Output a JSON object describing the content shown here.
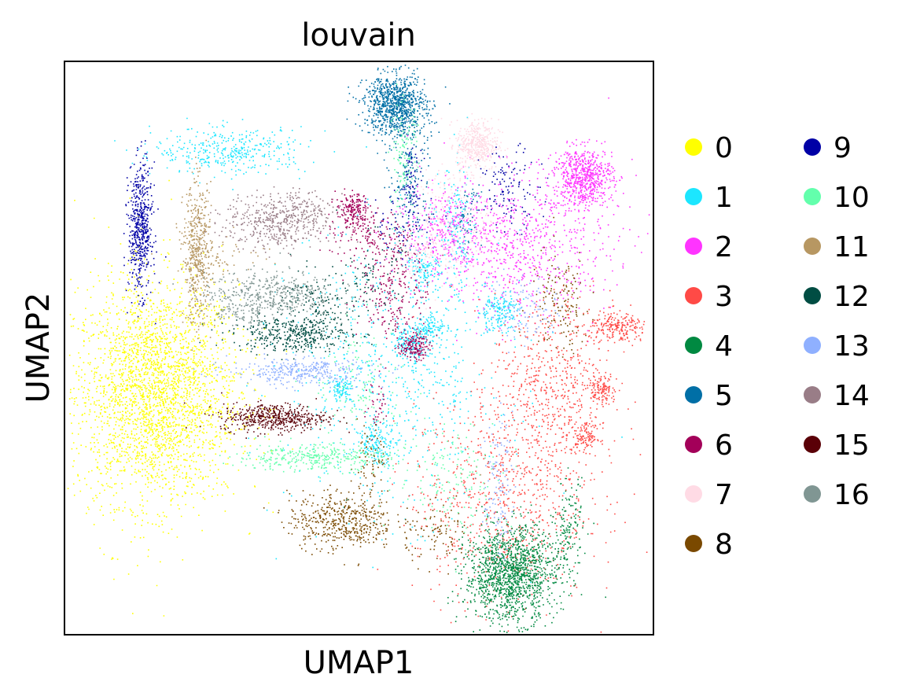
{
  "chart_data": {
    "type": "scatter",
    "title": "louvain",
    "xlabel": "UMAP1",
    "ylabel": "UMAP2",
    "grid": false,
    "ticks": false,
    "legend_position": "right, outside plot area, two columns",
    "clusters": [
      {
        "name": "0",
        "color": "#ffff00",
        "regions": [
          {
            "cx": 0.155,
            "cy": 0.42,
            "sx": 0.07,
            "sy": 0.095,
            "n": 2600
          },
          {
            "cx": 0.14,
            "cy": 0.44,
            "sx": 0.045,
            "sy": 0.13,
            "n": 250
          },
          {
            "cx": 0.23,
            "cy": 0.56,
            "sx": 0.03,
            "sy": 0.015,
            "n": 40
          }
        ]
      },
      {
        "name": "1",
        "color": "#1ce6ff",
        "regions": [
          {
            "cx": 0.56,
            "cy": 0.455,
            "sx": 0.09,
            "sy": 0.12,
            "n": 700
          },
          {
            "cx": 0.53,
            "cy": 0.335,
            "sx": 0.016,
            "sy": 0.016,
            "n": 140
          },
          {
            "cx": 0.585,
            "cy": 0.51,
            "sx": 0.014,
            "sy": 0.014,
            "n": 120
          },
          {
            "cx": 0.62,
            "cy": 0.535,
            "sx": 0.015,
            "sy": 0.015,
            "n": 120
          },
          {
            "cx": 0.735,
            "cy": 0.565,
            "sx": 0.018,
            "sy": 0.016,
            "n": 180
          },
          {
            "cx": 0.61,
            "cy": 0.635,
            "sx": 0.014,
            "sy": 0.014,
            "n": 110
          },
          {
            "cx": 0.47,
            "cy": 0.43,
            "sx": 0.012,
            "sy": 0.012,
            "n": 90
          },
          {
            "cx": 0.28,
            "cy": 0.845,
            "sx": 0.065,
            "sy": 0.02,
            "n": 380
          },
          {
            "cx": 0.665,
            "cy": 0.705,
            "sx": 0.015,
            "sy": 0.06,
            "n": 160
          }
        ]
      },
      {
        "name": "2",
        "color": "#ff34ff",
        "regions": [
          {
            "cx": 0.88,
            "cy": 0.8,
            "sx": 0.025,
            "sy": 0.025,
            "n": 650
          },
          {
            "cx": 0.77,
            "cy": 0.68,
            "sx": 0.08,
            "sy": 0.06,
            "n": 800
          },
          {
            "cx": 0.65,
            "cy": 0.715,
            "sx": 0.035,
            "sy": 0.035,
            "n": 250
          }
        ]
      },
      {
        "name": "3",
        "color": "#ff4a46",
        "regions": [
          {
            "cx": 0.825,
            "cy": 0.43,
            "sx": 0.05,
            "sy": 0.085,
            "n": 600
          },
          {
            "cx": 0.74,
            "cy": 0.235,
            "sx": 0.075,
            "sy": 0.09,
            "n": 750
          },
          {
            "cx": 0.94,
            "cy": 0.535,
            "sx": 0.025,
            "sy": 0.015,
            "n": 220
          },
          {
            "cx": 0.91,
            "cy": 0.432,
            "sx": 0.012,
            "sy": 0.012,
            "n": 110
          },
          {
            "cx": 0.885,
            "cy": 0.345,
            "sx": 0.012,
            "sy": 0.012,
            "n": 110
          }
        ]
      },
      {
        "name": "4",
        "color": "#008941",
        "regions": [
          {
            "cx": 0.755,
            "cy": 0.103,
            "sx": 0.038,
            "sy": 0.04,
            "n": 1300
          },
          {
            "cx": 0.78,
            "cy": 0.145,
            "sx": 0.035,
            "sy": 0.03,
            "n": 150
          },
          {
            "cx": 0.855,
            "cy": 0.18,
            "sx": 0.012,
            "sy": 0.045,
            "n": 150
          }
        ]
      },
      {
        "name": "5",
        "color": "#006fa6",
        "regions": [
          {
            "cx": 0.56,
            "cy": 0.925,
            "sx": 0.026,
            "sy": 0.026,
            "n": 900
          },
          {
            "cx": 0.585,
            "cy": 0.815,
            "sx": 0.018,
            "sy": 0.07,
            "n": 220
          },
          {
            "cx": 0.685,
            "cy": 0.735,
            "sx": 0.012,
            "sy": 0.03,
            "n": 60
          }
        ]
      },
      {
        "name": "6",
        "color": "#a30059",
        "regions": [
          {
            "cx": 0.49,
            "cy": 0.74,
            "sx": 0.015,
            "sy": 0.015,
            "n": 200
          },
          {
            "cx": 0.593,
            "cy": 0.505,
            "sx": 0.012,
            "sy": 0.012,
            "n": 150
          },
          {
            "cx": 0.56,
            "cy": 0.61,
            "sx": 0.03,
            "sy": 0.05,
            "n": 250
          },
          {
            "cx": 0.52,
            "cy": 0.69,
            "sx": 0.04,
            "sy": 0.02,
            "n": 120
          },
          {
            "cx": 0.53,
            "cy": 0.4,
            "sx": 0.01,
            "sy": 0.03,
            "n": 40
          }
        ]
      },
      {
        "name": "7",
        "color": "#ffdbe5",
        "regions": [
          {
            "cx": 0.7,
            "cy": 0.855,
            "sx": 0.018,
            "sy": 0.022,
            "n": 420
          },
          {
            "cx": 0.65,
            "cy": 0.72,
            "sx": 0.035,
            "sy": 0.05,
            "n": 250
          },
          {
            "cx": 0.595,
            "cy": 0.66,
            "sx": 0.02,
            "sy": 0.02,
            "n": 80
          }
        ]
      },
      {
        "name": "8",
        "color": "#7a4900",
        "regions": [
          {
            "cx": 0.47,
            "cy": 0.2,
            "sx": 0.045,
            "sy": 0.025,
            "n": 500
          },
          {
            "cx": 0.52,
            "cy": 0.3,
            "sx": 0.012,
            "sy": 0.035,
            "n": 70
          },
          {
            "cx": 0.64,
            "cy": 0.175,
            "sx": 0.03,
            "sy": 0.025,
            "n": 90
          },
          {
            "cx": 0.84,
            "cy": 0.58,
            "sx": 0.025,
            "sy": 0.045,
            "n": 140
          }
        ]
      },
      {
        "name": "9",
        "color": "#0000a6",
        "regions": [
          {
            "cx": 0.128,
            "cy": 0.71,
            "sx": 0.01,
            "sy": 0.055,
            "n": 550
          },
          {
            "cx": 0.755,
            "cy": 0.78,
            "sx": 0.025,
            "sy": 0.035,
            "n": 120
          },
          {
            "cx": 0.575,
            "cy": 0.72,
            "sx": 0.03,
            "sy": 0.03,
            "n": 70
          },
          {
            "cx": 0.59,
            "cy": 0.79,
            "sx": 0.008,
            "sy": 0.03,
            "n": 60
          }
        ]
      },
      {
        "name": "10",
        "color": "#63ffac",
        "regions": [
          {
            "cx": 0.42,
            "cy": 0.31,
            "sx": 0.065,
            "sy": 0.012,
            "n": 350
          },
          {
            "cx": 0.575,
            "cy": 0.83,
            "sx": 0.012,
            "sy": 0.05,
            "n": 120
          },
          {
            "cx": 0.66,
            "cy": 0.28,
            "sx": 0.05,
            "sy": 0.05,
            "n": 160
          },
          {
            "cx": 0.5,
            "cy": 0.44,
            "sx": 0.04,
            "sy": 0.05,
            "n": 120
          }
        ]
      },
      {
        "name": "11",
        "color": "#b79762",
        "regions": [
          {
            "cx": 0.225,
            "cy": 0.665,
            "sx": 0.012,
            "sy": 0.06,
            "n": 500
          },
          {
            "cx": 0.27,
            "cy": 0.66,
            "sx": 0.04,
            "sy": 0.02,
            "n": 60
          }
        ]
      },
      {
        "name": "12",
        "color": "#004d43",
        "regions": [
          {
            "cx": 0.385,
            "cy": 0.525,
            "sx": 0.05,
            "sy": 0.015,
            "n": 400
          },
          {
            "cx": 0.43,
            "cy": 0.575,
            "sx": 0.03,
            "sy": 0.03,
            "n": 150
          },
          {
            "cx": 0.52,
            "cy": 0.63,
            "sx": 0.025,
            "sy": 0.035,
            "n": 80
          }
        ]
      },
      {
        "name": "13",
        "color": "#8fb0ff",
        "regions": [
          {
            "cx": 0.4,
            "cy": 0.46,
            "sx": 0.06,
            "sy": 0.012,
            "n": 350
          },
          {
            "cx": 0.735,
            "cy": 0.26,
            "sx": 0.012,
            "sy": 0.06,
            "n": 120
          },
          {
            "cx": 0.78,
            "cy": 0.57,
            "sx": 0.03,
            "sy": 0.03,
            "n": 120
          }
        ]
      },
      {
        "name": "14",
        "color": "#997d87",
        "regions": [
          {
            "cx": 0.36,
            "cy": 0.72,
            "sx": 0.045,
            "sy": 0.025,
            "n": 450
          },
          {
            "cx": 0.41,
            "cy": 0.74,
            "sx": 0.03,
            "sy": 0.015,
            "n": 80
          }
        ]
      },
      {
        "name": "15",
        "color": "#5a0007",
        "regions": [
          {
            "cx": 0.355,
            "cy": 0.38,
            "sx": 0.045,
            "sy": 0.012,
            "n": 500
          }
        ]
      },
      {
        "name": "16",
        "color": "#809693",
        "regions": [
          {
            "cx": 0.345,
            "cy": 0.595,
            "sx": 0.055,
            "sy": 0.02,
            "n": 450
          },
          {
            "cx": 0.29,
            "cy": 0.56,
            "sx": 0.025,
            "sy": 0.01,
            "n": 60
          }
        ]
      }
    ]
  }
}
